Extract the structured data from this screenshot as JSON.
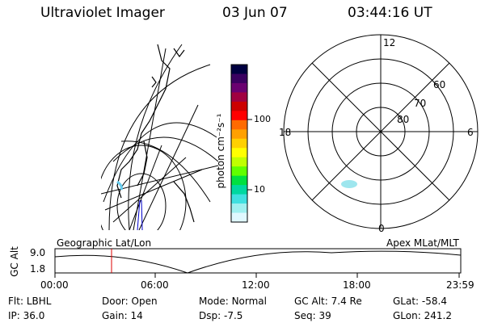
{
  "header": {
    "instrument": "Ultraviolet Imager",
    "date": "03 Jun 07",
    "time": "03:44:16 UT"
  },
  "colorbar": {
    "unit_label": "photon cm⁻²s⁻¹",
    "ticks": [
      "100",
      "10"
    ],
    "colors": [
      "#000040",
      "#3a0060",
      "#6a0070",
      "#a00040",
      "#cc0000",
      "#ff0000",
      "#ff6a00",
      "#ffa000",
      "#ffd000",
      "#ffff00",
      "#c0ff00",
      "#60ff00",
      "#00e040",
      "#00d8a0",
      "#40e0e0",
      "#a0f0f0",
      "#e0f8ff"
    ]
  },
  "polar_plot": {
    "mlt_labels": {
      "top": "12",
      "left": "18",
      "right": "6",
      "bottom": "0"
    },
    "lat_labels": [
      "60",
      "70",
      "80"
    ]
  },
  "timeline": {
    "y_axis_label": "GC Alt",
    "y_ticks": [
      "9.0",
      "1.8"
    ],
    "left_label": "Geographic Lat/Lon",
    "right_label": "Apex MLat/MLT",
    "x_ticks": [
      "00:00",
      "06:00",
      "12:00",
      "18:00",
      "23:59"
    ],
    "marker_color": "#dd0000"
  },
  "info": {
    "row1": [
      {
        "key": "Flt:",
        "value": "LBHL"
      },
      {
        "key": "Door:",
        "value": "Open"
      },
      {
        "key": "Mode:",
        "value": "Normal"
      },
      {
        "key": "GC Alt:",
        "value": "7.4 Re"
      },
      {
        "key": "GLat:",
        "value": "-58.4"
      }
    ],
    "row2": [
      {
        "key": "IP:",
        "value": "36.0"
      },
      {
        "key": "Gain:",
        "value": "14"
      },
      {
        "key": "Dsp:",
        "value": "-7.5"
      },
      {
        "key": "Seq:",
        "value": "39"
      },
      {
        "key": "GLon:",
        "value": "241.2"
      }
    ]
  }
}
